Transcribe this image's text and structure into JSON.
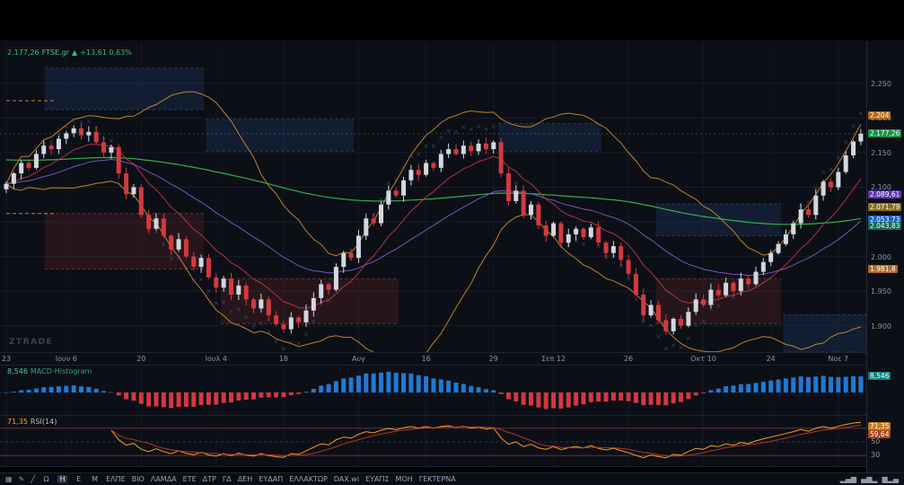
{
  "app": {
    "watermark": "ZTRADE"
  },
  "legend": {
    "price": "2.177,26",
    "symbol": "FTSE.gr",
    "arrow": "▲",
    "change": "+13,61 0,63%"
  },
  "macd_panel": {
    "value": "8,546",
    "name": "MACD-Histogram",
    "badge": {
      "text": "8,546",
      "bg": "#12827c"
    }
  },
  "rsi_panel": {
    "value": "71,35",
    "name": "RSI(14)",
    "badges": [
      {
        "name": "rsi-value-badge",
        "text": "71,35",
        "value": 71.35,
        "bg": "#c07c1e"
      },
      {
        "name": "rsi-signal-badge",
        "text": "59,64",
        "value": 59.64,
        "bg": "#ab4420"
      }
    ],
    "levels": [
      {
        "text": "70",
        "value": 70
      },
      {
        "text": "50",
        "value": 50
      },
      {
        "text": "30",
        "value": 30
      }
    ]
  },
  "price_axis": {
    "labels": [
      {
        "text": "2.250",
        "price": 2250
      },
      {
        "text": "2.200",
        "price": 2200
      },
      {
        "text": "2.150",
        "price": 2150
      },
      {
        "text": "2.100",
        "price": 2100
      },
      {
        "text": "2.050",
        "price": 2050
      },
      {
        "text": "2.000",
        "price": 2000
      },
      {
        "text": "1.950",
        "price": 1950
      },
      {
        "text": "1.900",
        "price": 1900
      }
    ],
    "badges": [
      {
        "name": "bb-upper-badge",
        "text": "2.204",
        "price": 2204,
        "bg": "#b06a1f"
      },
      {
        "name": "last-price-badge",
        "text": "2.177,26",
        "price": 2177.26,
        "bg": "#17934b"
      },
      {
        "name": "ma-purple-badge",
        "text": "2.089,61",
        "price": 2089.61,
        "bg": "#5e35b1"
      },
      {
        "name": "ma-yellow-badge",
        "text": "2.071,79",
        "price": 2071.79,
        "bg": "#8a6d1a"
      },
      {
        "name": "ma-blue-badge",
        "text": "2.053,73",
        "price": 2053.73,
        "bg": "#1763c6"
      },
      {
        "name": "ma-green-badge",
        "text": "2.043,83",
        "price": 2043.83,
        "bg": "#15695a"
      },
      {
        "name": "bb-lower-badge",
        "text": "1.981,8",
        "price": 1981.8,
        "bg": "#b06a1f"
      }
    ]
  },
  "toolbar": {
    "left_icons": [
      {
        "name": "layout-grid-icon",
        "glyph": "▦"
      },
      {
        "name": "draw-pencil-icon",
        "glyph": "✎"
      },
      {
        "name": "trendline-tool-icon",
        "glyph": "╱"
      }
    ],
    "periods": [
      "Ω",
      "Η",
      "Ε",
      "Μ"
    ],
    "active_period": "Η",
    "tickers": [
      "ΕΛΠΕ",
      "ΒΙΟ",
      "ΛΑΜΔΑ",
      "ΕΤΕ",
      "ΔΤΡ",
      "ΓΔ",
      "ΔΕΗ",
      "ΕΥΔΑΠ",
      "ΕΛΛΑΚΤΩΡ",
      "DAX.wi",
      "ΕΥΑΠΣ",
      "ΜΟΗ",
      "ΓΕΚΤΕΡΝΑ"
    ],
    "right_icons": [
      {
        "name": "volume-bars-icon",
        "glyph": "▂▄▆"
      },
      {
        "name": "histogram-icon",
        "glyph": "▄▆▂"
      },
      {
        "name": "bar-chart-icon",
        "glyph": "▆▂▄"
      }
    ]
  },
  "colors": {
    "grid": "#161d2b",
    "vgrid": "#121826",
    "up": "#d3d7e0",
    "down": "#d23a3e",
    "bb": "#c8872e",
    "ma_red": "#c0394a",
    "ma_purple": "#7a5bc6",
    "ma_green": "#35b94f",
    "macd_pos": "#1f7ad4",
    "macd_neg": "#d4383e",
    "rsi_line": "#f59d1d",
    "rsi_signal": "#bf3b30",
    "zone_blue": "rgba(45,85,160,0.20)",
    "zone_blue_border": "rgba(90,130,210,0.35)",
    "zone_red": "rgba(150,45,55,0.20)",
    "zone_red_border": "rgba(210,120,70,0.40)",
    "xmark": "#4e5c7b",
    "dashed_level": "#c8872e",
    "last_price_line": "#2fae5f"
  },
  "chart_data": {
    "type": "candlestick",
    "symbol": "FTSE.gr",
    "timeframe": "Η",
    "last_price": 2177.26,
    "change_points": "+13,61",
    "change_percent": "0,63%",
    "price_range": [
      1862,
      2312
    ],
    "grid_prices": [
      1900,
      1950,
      2000,
      2050,
      2100,
      2150,
      2200,
      2250
    ],
    "closes": [
      2105,
      2120,
      2135,
      2128,
      2148,
      2160,
      2155,
      2170,
      2178,
      2185,
      2175,
      2180,
      2165,
      2150,
      2158,
      2120,
      2090,
      2100,
      2060,
      2040,
      2055,
      2030,
      2010,
      2025,
      2000,
      1985,
      1998,
      1970,
      1955,
      1968,
      1945,
      1958,
      1938,
      1925,
      1938,
      1915,
      1902,
      1895,
      1912,
      1905,
      1922,
      1940,
      1960,
      1952,
      1985,
      2005,
      1998,
      2030,
      2055,
      2048,
      2075,
      2095,
      2088,
      2110,
      2125,
      2118,
      2135,
      2128,
      2148,
      2155,
      2148,
      2160,
      2152,
      2163,
      2155,
      2165,
      2120,
      2080,
      2095,
      2060,
      2075,
      2045,
      2030,
      2048,
      2020,
      2032,
      2040,
      2028,
      2042,
      2020,
      2005,
      2015,
      1995,
      1975,
      1945,
      1915,
      1930,
      1908,
      1892,
      1910,
      1900,
      1920,
      1938,
      1930,
      1952,
      1944,
      1962,
      1950,
      1968,
      1960,
      1978,
      1992,
      2005,
      2018,
      2032,
      2048,
      2068,
      2060,
      2088,
      2108,
      2100,
      2122,
      2146,
      2166,
      2177.26
    ],
    "x_ticks": [
      {
        "i": 0,
        "label": "23"
      },
      {
        "i": 8,
        "label": "Ιουν 6"
      },
      {
        "i": 18,
        "label": "20"
      },
      {
        "i": 28,
        "label": "Ιουλ 4"
      },
      {
        "i": 37,
        "label": "18"
      },
      {
        "i": 47,
        "label": "Αυγ"
      },
      {
        "i": 56,
        "label": "16"
      },
      {
        "i": 65,
        "label": "29"
      },
      {
        "i": 73,
        "label": "Σεπ 12"
      },
      {
        "i": 83,
        "label": "26"
      },
      {
        "i": 93,
        "label": "Οκτ 10"
      },
      {
        "i": 102,
        "label": "24"
      },
      {
        "i": 111,
        "label": "Νοε 7"
      }
    ],
    "zones": [
      {
        "type": "blue",
        "i0": 5.5,
        "i1": 26,
        "p0": 2212,
        "p1": 2272
      },
      {
        "type": "blue",
        "i0": 27,
        "i1": 46,
        "p0": 2152,
        "p1": 2198
      },
      {
        "type": "blue",
        "i0": 66,
        "i1": 79,
        "p0": 2152,
        "p1": 2192
      },
      {
        "type": "blue",
        "i0": 87,
        "i1": 103,
        "p0": 2030,
        "p1": 2076
      },
      {
        "type": "blue",
        "i0": 104,
        "i1": 116,
        "p0": 1862,
        "p1": 1916
      },
      {
        "type": "red",
        "i0": 5.5,
        "i1": 26,
        "p0": 1982,
        "p1": 2062
      },
      {
        "type": "red",
        "i0": 29,
        "i1": 52,
        "p0": 1903,
        "p1": 1968
      },
      {
        "type": "red",
        "i0": 87,
        "i1": 103,
        "p0": 1903,
        "p1": 1968
      }
    ],
    "dashed_levels": [
      {
        "p": 2225,
        "i0": 0,
        "i1": 6.5
      },
      {
        "p": 2062,
        "i0": 0,
        "i1": 6.5
      }
    ],
    "indicators": {
      "bollinger": {
        "period": 20,
        "stddev": 2,
        "upper_last": "2.204",
        "lower_last": "1.981,8"
      },
      "moving_averages": [
        {
          "color": "purple",
          "last": "2.089,61"
        },
        {
          "color": "yellow",
          "last": "2.071,79"
        },
        {
          "color": "blue",
          "last": "2.053,73"
        },
        {
          "color": "green",
          "last": "2.043,83"
        }
      ],
      "macd_histogram": {
        "last": "8,546"
      },
      "rsi": {
        "period": 14,
        "last": "71,35",
        "signal_last": "59,64",
        "levels": [
          70,
          50,
          30
        ]
      }
    }
  }
}
